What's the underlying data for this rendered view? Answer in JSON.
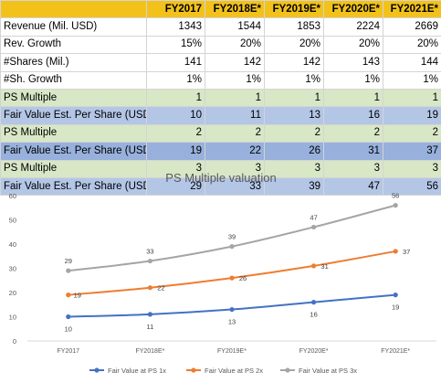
{
  "table": {
    "columns": [
      "",
      "FY2017",
      "FY2018E*",
      "FY2019E*",
      "FY2020E*",
      "FY2021E*"
    ],
    "rows": [
      {
        "label": "Revenue (Mil. USD)",
        "values": [
          "1343",
          "1544",
          "1853",
          "2224",
          "2669"
        ],
        "fill": "plain"
      },
      {
        "label": "Rev. Growth",
        "values": [
          "15%",
          "20%",
          "20%",
          "20%",
          "20%"
        ],
        "fill": "plain"
      },
      {
        "label": "#Shares (Mil.)",
        "values": [
          "141",
          "142",
          "142",
          "143",
          "144"
        ],
        "fill": "plain"
      },
      {
        "label": "#Sh. Growth",
        "values": [
          "1%",
          "1%",
          "1%",
          "1%",
          "1%"
        ],
        "fill": "plain"
      },
      {
        "label": "PS Multiple",
        "values": [
          "1",
          "1",
          "1",
          "1",
          "1"
        ],
        "fill": "green"
      },
      {
        "label": "Fair Value Est. Per Share (USD)",
        "values": [
          "10",
          "11",
          "13",
          "16",
          "19"
        ],
        "fill": "blue"
      },
      {
        "label": "PS Multiple",
        "values": [
          "2",
          "2",
          "2",
          "2",
          "2"
        ],
        "fill": "green"
      },
      {
        "label": "Fair Value Est. Per Share (USD)",
        "values": [
          "19",
          "22",
          "26",
          "31",
          "37"
        ],
        "fill": "blue2"
      },
      {
        "label": "PS Multiple",
        "values": [
          "3",
          "3",
          "3",
          "3",
          "3"
        ],
        "fill": "green"
      },
      {
        "label": "Fair Value Est. Per Share (USD)",
        "values": [
          "29",
          "33",
          "39",
          "47",
          "56"
        ],
        "fill": "blue"
      }
    ],
    "colors": {
      "header": "#f2c21b",
      "green": "#d8e7c6",
      "blue": "#b3c6e6",
      "blue2": "#97b0dc"
    }
  },
  "chart_data": {
    "type": "line",
    "title": "PS Multiple valuation",
    "categories": [
      "FY2017",
      "FY2018E*",
      "FY2019E*",
      "FY2020E*",
      "FY2021E*"
    ],
    "yticks": [
      "0",
      "10",
      "20",
      "30",
      "40",
      "50",
      "60"
    ],
    "ylim": [
      0,
      60
    ],
    "grid": false,
    "legend_position": "bottom",
    "series": [
      {
        "name": "Fair Value at PS 1x",
        "values": [
          10,
          11,
          13,
          16,
          19
        ],
        "labels": [
          "10",
          "11",
          "13",
          "16",
          "19"
        ],
        "color": "#4472c4"
      },
      {
        "name": "Fair Value at PS 2x",
        "values": [
          19,
          22,
          26,
          31,
          37
        ],
        "labels": [
          "19",
          "22",
          "26",
          "31",
          "37"
        ],
        "color": "#ed7d31"
      },
      {
        "name": "Fair Value at PS 3x",
        "values": [
          29,
          33,
          39,
          47,
          56
        ],
        "labels": [
          "29",
          "33",
          "39",
          "47",
          "56"
        ],
        "color": "#a5a5a5"
      }
    ]
  }
}
